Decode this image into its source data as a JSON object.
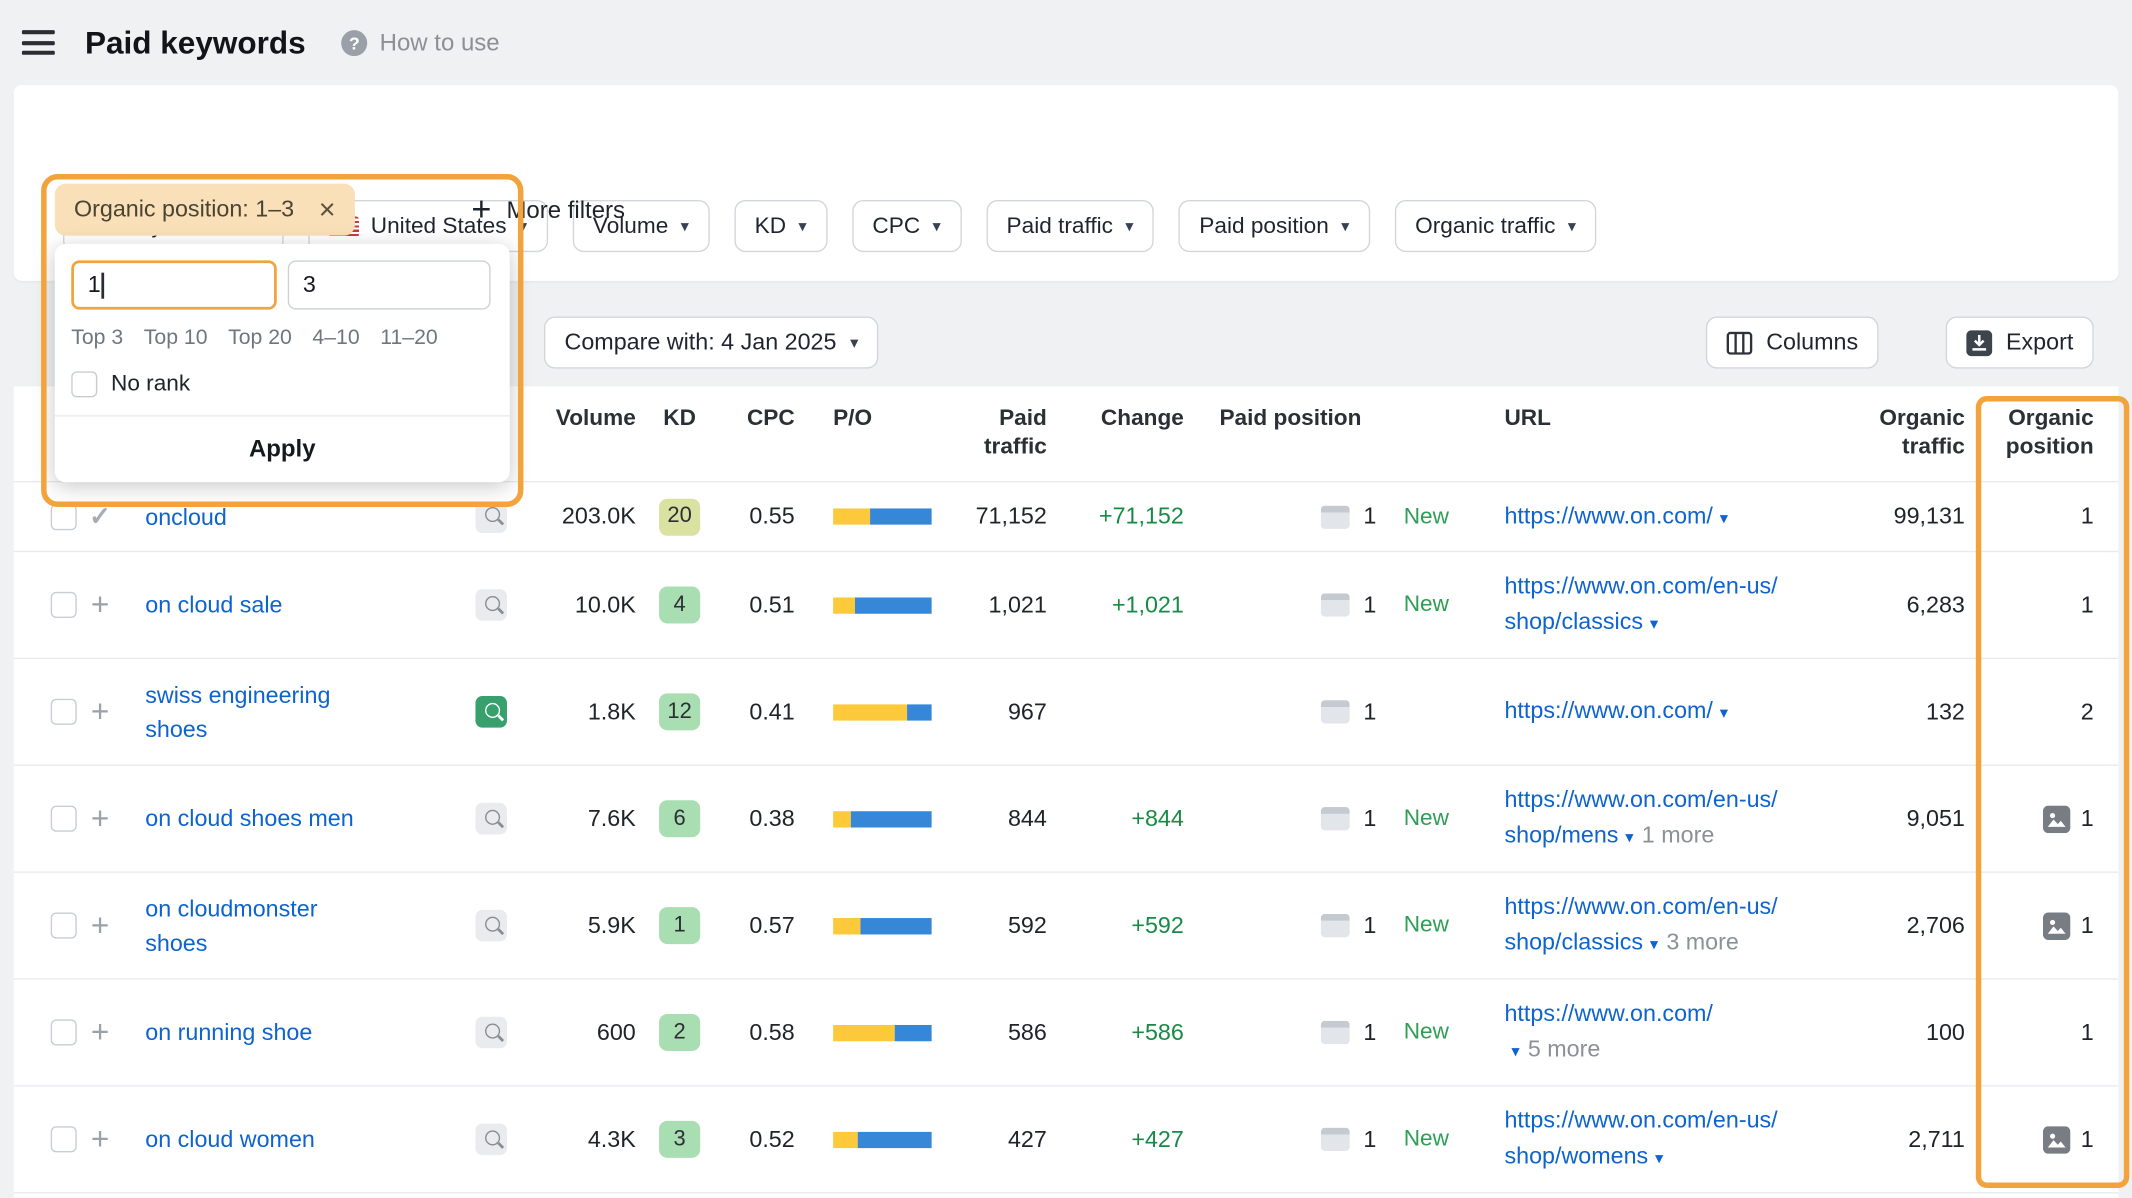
{
  "colors": {
    "highlight": "#f2a33c",
    "link": "#0d63cf",
    "positive": "#178a45",
    "po_paid": "#fcc93a",
    "po_organic": "#3787d8"
  },
  "header": {
    "title": "Paid keywords",
    "help_label": "How to use"
  },
  "filter_bar": {
    "dropdowns": [
      {
        "label": "Monthly volume",
        "flag": false
      },
      {
        "label": "United States",
        "flag": true
      },
      {
        "label": "Volume",
        "flag": false
      },
      {
        "label": "KD",
        "flag": false
      },
      {
        "label": "CPC",
        "flag": false
      },
      {
        "label": "Paid traffic",
        "flag": false
      },
      {
        "label": "Paid position",
        "flag": false
      },
      {
        "label": "Organic traffic",
        "flag": false
      }
    ],
    "more_filters_label": "More filters"
  },
  "organic_position_filter": {
    "chip_label": "Organic position: 1–3",
    "from_value": "1",
    "to_value": "3",
    "quick_options": [
      "Top 3",
      "Top 10",
      "Top 20",
      "4–10",
      "11–20"
    ],
    "no_rank_label": "No rank",
    "apply_label": "Apply"
  },
  "toolbar": {
    "compare_label": "Compare with: 4 Jan 2025",
    "columns_label": "Columns",
    "export_label": "Export"
  },
  "table": {
    "headers": {
      "volume": "Volume",
      "kd": "KD",
      "cpc": "CPC",
      "po": "P/O",
      "paid_traffic": "Paid traffic",
      "change": "Change",
      "paid_position": "Paid position",
      "url": "URL",
      "organic_traffic": "Organic traffic",
      "organic_position": "Organic position"
    },
    "labels": {
      "new": "New"
    },
    "rows": [
      {
        "keyword": "oncloud",
        "added": true,
        "serp_active": false,
        "volume": "203.0K",
        "kd": "20",
        "kd_color": "#d9e2a0",
        "cpc": "0.55",
        "po_paid": 38,
        "paid_traffic": "71,152",
        "change": "+71,152",
        "paid_position": "1",
        "is_new": true,
        "url": "https://www.on.com/",
        "url_more": "",
        "organic_traffic": "99,131",
        "organic_position": "1",
        "has_image": false
      },
      {
        "keyword": "on cloud sale",
        "added": false,
        "serp_active": false,
        "volume": "10.0K",
        "kd": "4",
        "kd_color": "#a9deb2",
        "cpc": "0.51",
        "po_paid": 22,
        "paid_traffic": "1,021",
        "change": "+1,021",
        "paid_position": "1",
        "is_new": true,
        "url": "https://www.on.com/en-us/shop/classics",
        "url_more": "",
        "organic_traffic": "6,283",
        "organic_position": "1",
        "has_image": false
      },
      {
        "keyword": "swiss engineering shoes",
        "added": false,
        "serp_active": true,
        "volume": "1.8K",
        "kd": "12",
        "kd_color": "#a9deb2",
        "cpc": "0.41",
        "po_paid": 75,
        "paid_traffic": "967",
        "change": "",
        "paid_position": "1",
        "is_new": false,
        "url": "https://www.on.com/",
        "url_more": "",
        "organic_traffic": "132",
        "organic_position": "2",
        "has_image": false
      },
      {
        "keyword": "on cloud shoes men",
        "added": false,
        "serp_active": false,
        "volume": "7.6K",
        "kd": "6",
        "kd_color": "#a9deb2",
        "cpc": "0.38",
        "po_paid": 18,
        "paid_traffic": "844",
        "change": "+844",
        "paid_position": "1",
        "is_new": true,
        "url": "https://www.on.com/en-us/shop/mens",
        "url_more": "1 more",
        "organic_traffic": "9,051",
        "organic_position": "1",
        "has_image": true
      },
      {
        "keyword": "on cloudmonster shoes",
        "added": false,
        "serp_active": false,
        "volume": "5.9K",
        "kd": "1",
        "kd_color": "#a9deb2",
        "cpc": "0.57",
        "po_paid": 28,
        "paid_traffic": "592",
        "change": "+592",
        "paid_position": "1",
        "is_new": true,
        "url": "https://www.on.com/en-us/shop/classics",
        "url_more": "3 more",
        "organic_traffic": "2,706",
        "organic_position": "1",
        "has_image": true
      },
      {
        "keyword": "on running shoe",
        "added": false,
        "serp_active": false,
        "volume": "600",
        "kd": "2",
        "kd_color": "#a9deb2",
        "cpc": "0.58",
        "po_paid": 63,
        "paid_traffic": "586",
        "change": "+586",
        "paid_position": "1",
        "is_new": true,
        "url": "https://www.on.com/",
        "url_more": "5 more",
        "organic_traffic": "100",
        "organic_position": "1",
        "has_image": false
      },
      {
        "keyword": "on cloud women",
        "added": false,
        "serp_active": false,
        "volume": "4.3K",
        "kd": "3",
        "kd_color": "#a9deb2",
        "cpc": "0.52",
        "po_paid": 25,
        "paid_traffic": "427",
        "change": "+427",
        "paid_position": "1",
        "is_new": true,
        "url": "https://www.on.com/en-us/shop/womens",
        "url_more": "",
        "organic_traffic": "2,711",
        "organic_position": "1",
        "has_image": true
      }
    ]
  }
}
